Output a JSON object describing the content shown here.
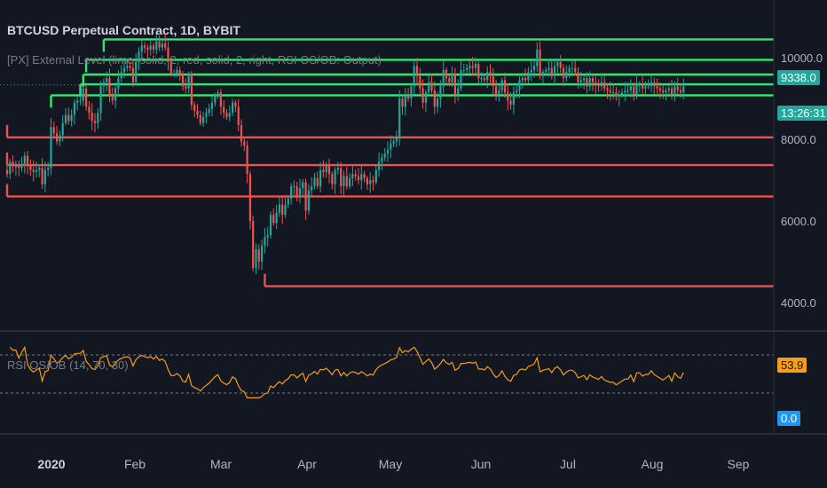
{
  "header": {
    "title": "BTCUSD Perpetual Contract, 1D, BYBIT",
    "indicator_label": "[PX] External Level (lime, solid, 2, red, solid, 2, right, RSI OS/OB: Output)",
    "rsi_label": "RSI OS/OB (14, 70, 30)"
  },
  "badges": {
    "price": "9338.0",
    "countdown": "13:26:31",
    "rsi": "53.9",
    "zero": "0.0"
  },
  "colors": {
    "background": "#131722",
    "up": "#26a69a",
    "down": "#ef5350",
    "resistance": "#2ee86f",
    "support": "#f05050",
    "rsi": "#f59c1a",
    "zero": "#2196f3"
  },
  "chart_data": {
    "type": "candlestick",
    "x_tick_labels": [
      "2020",
      "Feb",
      "Mar",
      "Apr",
      "May",
      "Jun",
      "Jul",
      "Aug",
      "Sep"
    ],
    "price_axis": {
      "ticks": [
        4000,
        6000,
        8000,
        10000
      ],
      "ylim": [
        3600,
        10900
      ]
    },
    "closes": [
      7150,
      7450,
      7350,
      7350,
      7300,
      7400,
      7600,
      7350,
      7250,
      7200,
      7250,
      7300,
      6900,
      7250,
      7300,
      8300,
      8150,
      7950,
      8100,
      8400,
      8600,
      8450,
      8600,
      8900,
      8950,
      8950,
      9250,
      8800,
      8650,
      8450,
      8400,
      8650,
      9300,
      9400,
      9500,
      9050,
      8950,
      9250,
      9500,
      9650,
      9750,
      9800,
      9750,
      9400,
      9900,
      10150,
      10300,
      10250,
      10200,
      10300,
      10200,
      10400,
      10250,
      10350,
      10250,
      9900,
      9600,
      9600,
      9700,
      9600,
      9300,
      9250,
      9600,
      8850,
      8700,
      8600,
      8400,
      8550,
      8650,
      8750,
      8900,
      9050,
      9150,
      8800,
      8650,
      8550,
      8650,
      8900,
      8800,
      8350,
      7950,
      7850,
      7150,
      6000,
      4850,
      5300,
      5000,
      5400,
      5600,
      5650,
      6150,
      5950,
      6200,
      6400,
      6150,
      6400,
      6550,
      6850,
      6850,
      6600,
      6800,
      6950,
      6250,
      6750,
      6850,
      7050,
      6850,
      7250,
      7200,
      7350,
      7150,
      6900,
      7250,
      7300,
      6850,
      7100,
      6850,
      7050,
      7150,
      7100,
      7000,
      7150,
      7050,
      6900,
      7000,
      6950,
      7250,
      7450,
      7550,
      7650,
      7750,
      7900,
      7950,
      8050,
      9000,
      8800,
      9050,
      9000,
      9300,
      9800,
      9550,
      9250,
      8900,
      9150,
      9400,
      9200,
      8800,
      9000,
      9300,
      9700,
      9500,
      9400,
      9600,
      9100,
      9250,
      9700,
      9700,
      9750,
      9800,
      9750,
      9850,
      9500,
      9500,
      9450,
      9650,
      9550,
      9300,
      9100,
      9200,
      9450,
      9150,
      8950,
      8850,
      9150,
      9200,
      9450,
      9500,
      9450,
      9650,
      9700,
      9800,
      10200,
      9550,
      9650,
      9700,
      9750,
      9550,
      9800,
      9900,
      9750,
      9500,
      9650,
      9750,
      9750,
      9650,
      9400,
      9450,
      9500,
      9300,
      9500,
      9400,
      9350,
      9300,
      9400,
      9250,
      9200,
      9150,
      9150,
      9050,
      9100,
      9150,
      9200,
      9200,
      9300,
      9100,
      9350,
      9350,
      9250,
      9300,
      9300,
      9400,
      9300,
      9250,
      9200,
      9150,
      9200,
      9250,
      9100,
      9300,
      9200,
      9150,
      9300
    ],
    "levels": {
      "resistance": [
        {
          "price": 10450,
          "from_bar": 33
        },
        {
          "price": 9950,
          "from_bar": 27
        },
        {
          "price": 9590,
          "from_bar": 26
        },
        {
          "price": 9350,
          "from_bar": 25
        },
        {
          "price": 9080,
          "from_bar": 15
        }
      ],
      "support": [
        {
          "price": 8050,
          "from_bar": 0
        },
        {
          "price": 7370,
          "from_bar": 0
        },
        {
          "price": 6600,
          "from_bar": 0
        },
        {
          "price": 4400,
          "from_bar": 88
        }
      ]
    },
    "rsi": {
      "overbought": 70,
      "oversold": 30,
      "current": 53.9
    }
  }
}
